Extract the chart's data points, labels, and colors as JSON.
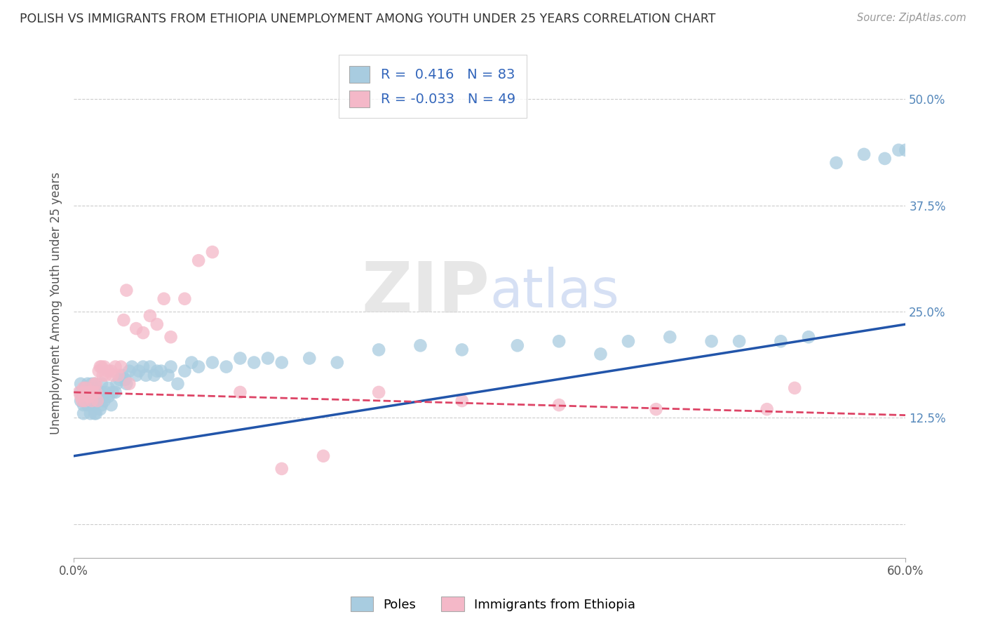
{
  "title": "POLISH VS IMMIGRANTS FROM ETHIOPIA UNEMPLOYMENT AMONG YOUTH UNDER 25 YEARS CORRELATION CHART",
  "source": "Source: ZipAtlas.com",
  "ylabel": "Unemployment Among Youth under 25 years",
  "xmin": 0.0,
  "xmax": 0.6,
  "ymin": -0.04,
  "ymax": 0.56,
  "yticks": [
    0.0,
    0.125,
    0.25,
    0.375,
    0.5
  ],
  "ytick_labels_right": [
    "",
    "12.5%",
    "25.0%",
    "37.5%",
    "50.0%"
  ],
  "watermark_text": "ZIPatlas",
  "r_poles": "0.416",
  "n_poles": "83",
  "r_ethiopia": "-0.033",
  "n_ethiopia": "49",
  "blue_scatter_color": "#a8cce0",
  "pink_scatter_color": "#f4b8c8",
  "blue_line_color": "#2255aa",
  "pink_line_color": "#dd4466",
  "legend_label_poles": "Poles",
  "legend_label_ethiopia": "Immigrants from Ethiopia",
  "background_color": "#ffffff",
  "grid_color": "#cccccc",
  "blue_line_y0": 0.08,
  "blue_line_y1": 0.235,
  "pink_line_y0": 0.155,
  "pink_line_y1": 0.128,
  "poles_x": [
    0.005,
    0.005,
    0.005,
    0.007,
    0.007,
    0.007,
    0.008,
    0.008,
    0.01,
    0.01,
    0.01,
    0.012,
    0.012,
    0.013,
    0.013,
    0.014,
    0.015,
    0.015,
    0.015,
    0.015,
    0.016,
    0.016,
    0.016,
    0.018,
    0.018,
    0.019,
    0.02,
    0.02,
    0.02,
    0.021,
    0.022,
    0.023,
    0.025,
    0.025,
    0.027,
    0.028,
    0.03,
    0.031,
    0.033,
    0.035,
    0.037,
    0.038,
    0.04,
    0.042,
    0.045,
    0.047,
    0.05,
    0.052,
    0.055,
    0.058,
    0.06,
    0.063,
    0.068,
    0.07,
    0.075,
    0.08,
    0.085,
    0.09,
    0.1,
    0.11,
    0.12,
    0.13,
    0.14,
    0.15,
    0.17,
    0.19,
    0.22,
    0.25,
    0.28,
    0.32,
    0.35,
    0.38,
    0.4,
    0.43,
    0.46,
    0.48,
    0.51,
    0.53,
    0.55,
    0.57,
    0.585,
    0.595,
    0.6
  ],
  "poles_y": [
    0.165,
    0.155,
    0.145,
    0.14,
    0.155,
    0.13,
    0.15,
    0.16,
    0.14,
    0.155,
    0.165,
    0.13,
    0.145,
    0.155,
    0.165,
    0.14,
    0.13,
    0.145,
    0.155,
    0.165,
    0.13,
    0.145,
    0.16,
    0.145,
    0.155,
    0.135,
    0.14,
    0.155,
    0.165,
    0.15,
    0.145,
    0.155,
    0.15,
    0.16,
    0.14,
    0.155,
    0.155,
    0.165,
    0.17,
    0.175,
    0.17,
    0.165,
    0.18,
    0.185,
    0.175,
    0.18,
    0.185,
    0.175,
    0.185,
    0.175,
    0.18,
    0.18,
    0.175,
    0.185,
    0.165,
    0.18,
    0.19,
    0.185,
    0.19,
    0.185,
    0.195,
    0.19,
    0.195,
    0.19,
    0.195,
    0.19,
    0.205,
    0.21,
    0.205,
    0.21,
    0.215,
    0.2,
    0.215,
    0.22,
    0.215,
    0.215,
    0.215,
    0.22,
    0.425,
    0.435,
    0.43,
    0.44,
    0.44
  ],
  "ethiopia_x": [
    0.004,
    0.005,
    0.006,
    0.007,
    0.007,
    0.008,
    0.009,
    0.01,
    0.011,
    0.012,
    0.013,
    0.014,
    0.015,
    0.016,
    0.016,
    0.017,
    0.018,
    0.019,
    0.02,
    0.021,
    0.022,
    0.023,
    0.025,
    0.027,
    0.028,
    0.03,
    0.032,
    0.034,
    0.036,
    0.038,
    0.04,
    0.045,
    0.05,
    0.055,
    0.06,
    0.065,
    0.07,
    0.08,
    0.09,
    0.1,
    0.12,
    0.15,
    0.18,
    0.22,
    0.28,
    0.35,
    0.42,
    0.5,
    0.52
  ],
  "ethiopia_y": [
    0.155,
    0.15,
    0.145,
    0.16,
    0.155,
    0.145,
    0.16,
    0.155,
    0.15,
    0.155,
    0.145,
    0.155,
    0.165,
    0.155,
    0.165,
    0.145,
    0.18,
    0.185,
    0.185,
    0.175,
    0.185,
    0.175,
    0.18,
    0.18,
    0.175,
    0.185,
    0.175,
    0.185,
    0.24,
    0.275,
    0.165,
    0.23,
    0.225,
    0.245,
    0.235,
    0.265,
    0.22,
    0.265,
    0.31,
    0.32,
    0.155,
    0.065,
    0.08,
    0.155,
    0.145,
    0.14,
    0.135,
    0.135,
    0.16
  ]
}
